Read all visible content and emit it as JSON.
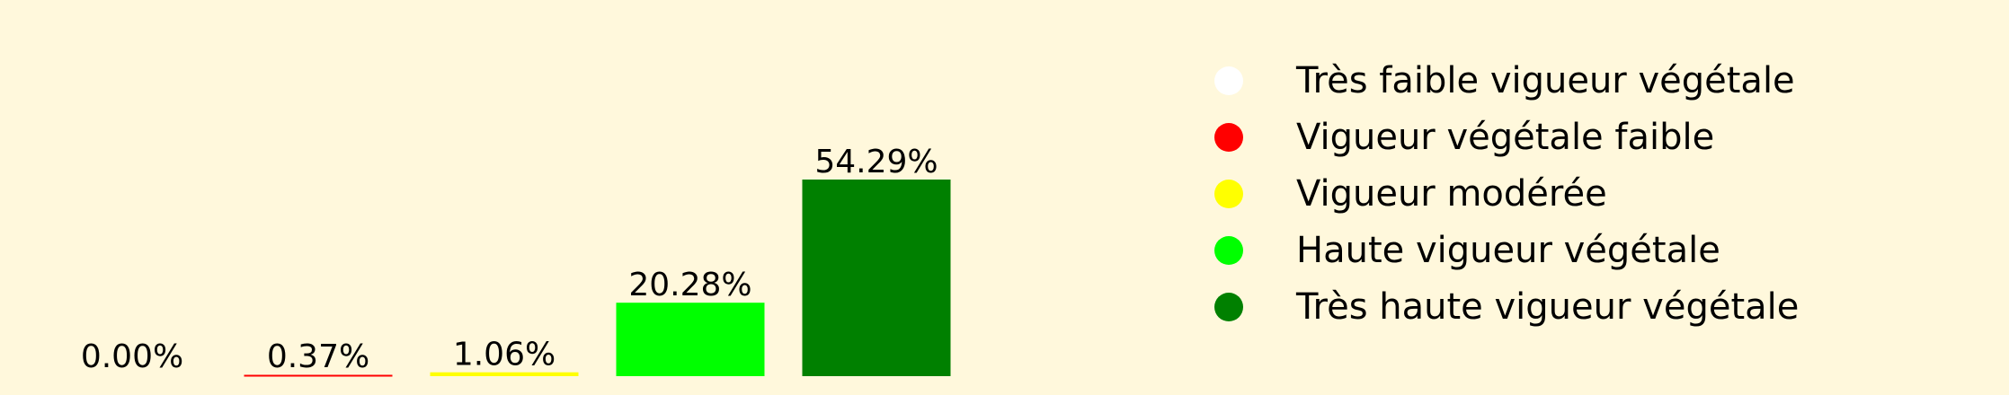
{
  "chart_data": {
    "type": "bar",
    "categories": [
      "Très faible vigueur végétale",
      "Vigueur végétale faible",
      "Vigueur modérée",
      "Haute vigueur végétale",
      "Très haute vigueur végétale"
    ],
    "values": [
      0.0,
      0.37,
      1.06,
      20.28,
      54.29
    ],
    "data_labels": [
      "0.00%",
      "0.37%",
      "1.06%",
      "20.28%",
      "54.29%"
    ],
    "colors": [
      "#ffffff",
      "#ff0000",
      "#ffff00",
      "#00ff00",
      "#008000"
    ],
    "title": "",
    "xlabel": "",
    "ylabel": "",
    "ylim": [
      0,
      54.29
    ],
    "grid": false,
    "axes_visible": false,
    "legend_placement": "right",
    "legend": [
      {
        "label": "Très faible vigueur végétale",
        "color": "#ffffff"
      },
      {
        "label": "Vigueur végétale faible",
        "color": "#ff0000"
      },
      {
        "label": "Vigueur modérée",
        "color": "#ffff00"
      },
      {
        "label": "Haute vigueur végétale",
        "color": "#00ff00"
      },
      {
        "label": "Très haute vigueur végétale",
        "color": "#008000"
      }
    ]
  },
  "background_color": "#fff8dc"
}
